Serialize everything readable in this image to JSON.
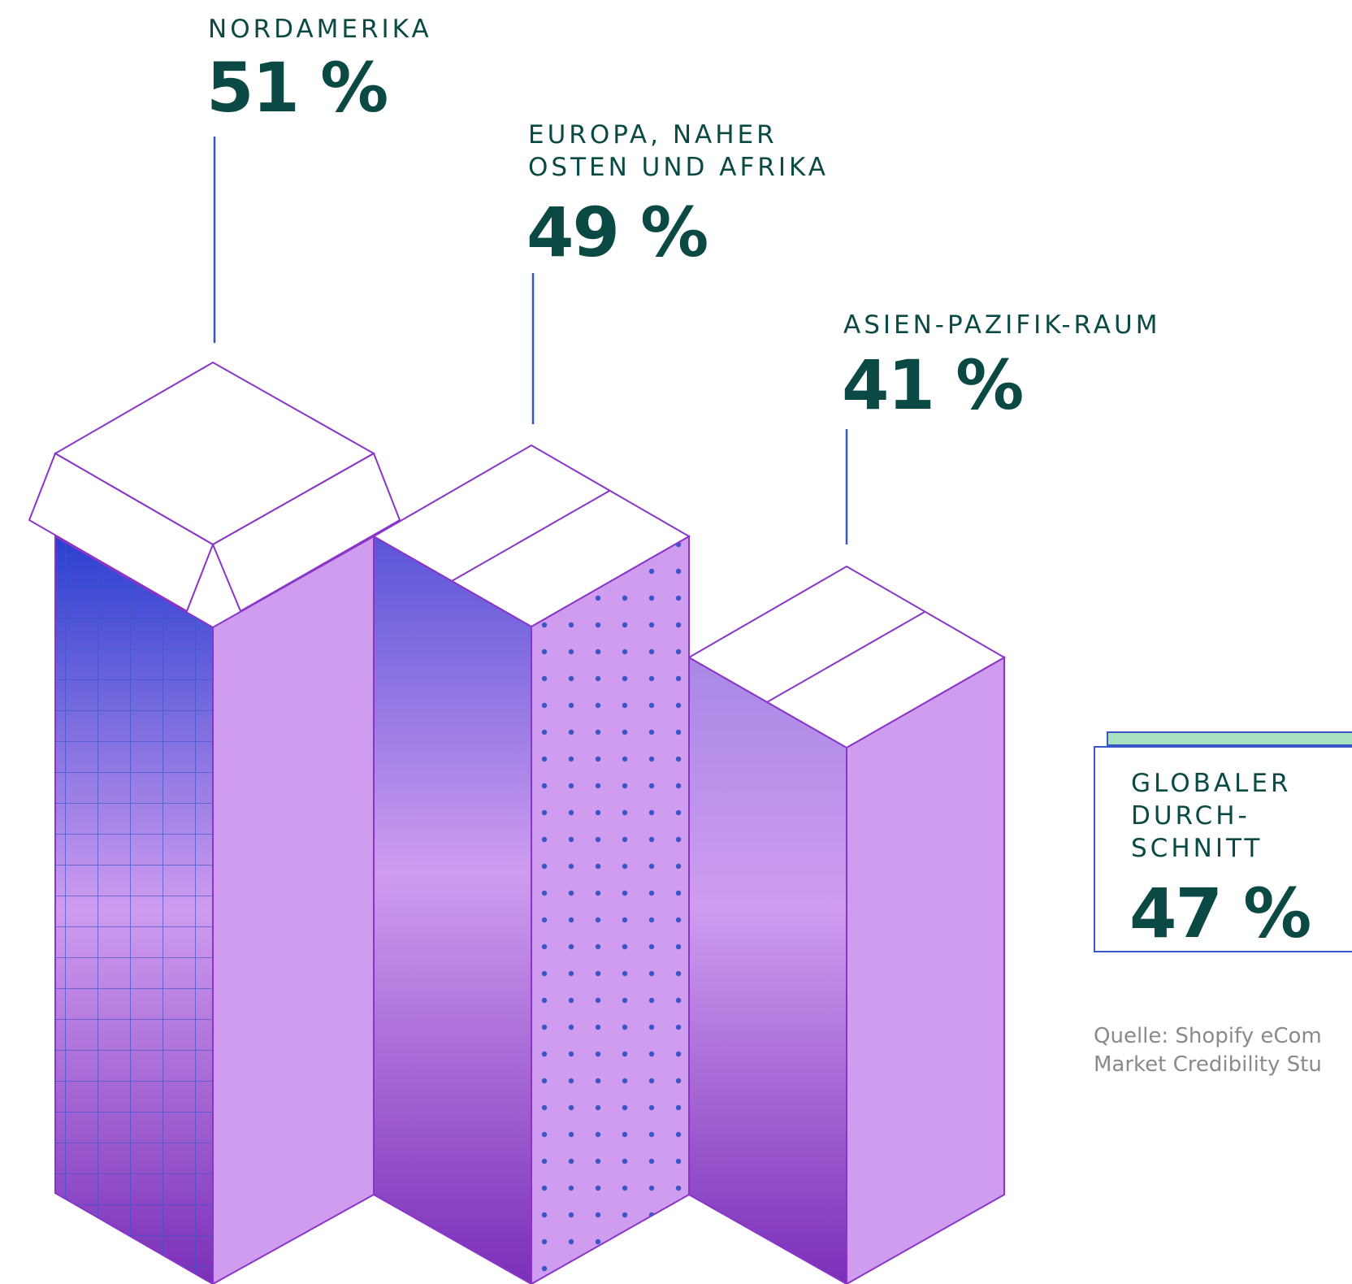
{
  "chart_data": {
    "type": "bar",
    "categories": [
      "NORDAMERIKA",
      "EUROPA, NAHER\nOSTEN UND AFRIKA",
      "ASIEN-PAZIFIK-RAUM"
    ],
    "values": [
      51,
      49,
      41
    ],
    "value_labels": [
      "51 %",
      "49 %",
      "41 %"
    ],
    "average": {
      "label": "GLOBALER\nDURCH-\nSCHNITT",
      "value": 47,
      "value_label": "47 %"
    },
    "source": "Quelle: Shopify eCom\nMarket Credibility Stu"
  },
  "colors": {
    "text": "#0b4a44",
    "bar_light": "#d09cf0",
    "bar_dark": "#7a2fb8",
    "bar_top_blue": "#2a3fd0",
    "outline": "#8a35c8",
    "leader": "#3a55c8",
    "accent_green": "#a8e0c0",
    "source_text": "#8a8a8a"
  }
}
